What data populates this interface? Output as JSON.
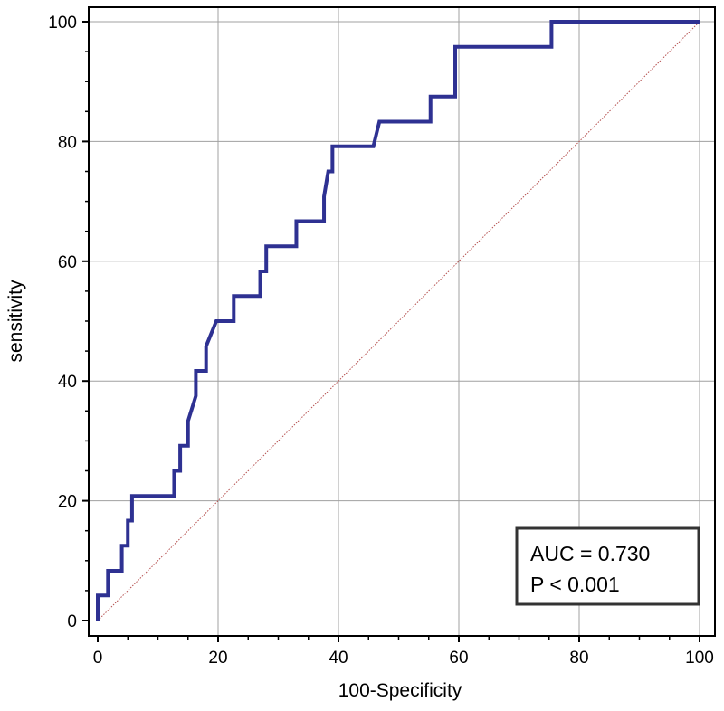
{
  "chart_data": {
    "type": "line",
    "title": "",
    "xlabel": "100-Specificity",
    "ylabel": "sensitivity",
    "xlim": [
      0,
      100
    ],
    "ylim": [
      0,
      100
    ],
    "xticks": [
      "0",
      "20",
      "40",
      "60",
      "80",
      "100"
    ],
    "yticks": [
      "0",
      "20",
      "40",
      "60",
      "80",
      "100"
    ],
    "grid": true,
    "colors": {
      "roc": "#2e3192",
      "reference": "#b5504f",
      "grid": "#a0a0a0"
    },
    "series": [
      {
        "values_x": [
          0,
          0,
          1.7,
          1.7,
          4,
          4,
          5,
          5,
          5.7,
          5.7,
          12.7,
          12.7,
          13.7,
          13.7,
          15,
          15,
          16.3,
          16.3,
          18,
          18,
          19.7,
          19.7,
          22.6,
          22.6,
          27,
          27,
          28,
          28,
          33,
          33,
          37.6,
          37.6,
          38.3,
          38.3,
          39,
          39,
          45.8,
          45.8,
          46.8,
          46.8,
          55.3,
          55.3,
          59.4,
          59.4,
          75.4,
          75.4,
          100
        ],
        "values_y": [
          0,
          4.2,
          4.2,
          8.3,
          8.3,
          12.5,
          12.5,
          16.7,
          16.7,
          20.8,
          20.8,
          25,
          25,
          29.2,
          29.2,
          33.3,
          37.5,
          41.7,
          41.7,
          45.8,
          50,
          50,
          50,
          54.2,
          54.2,
          58.3,
          58.3,
          62.5,
          62.5,
          66.7,
          66.7,
          70.8,
          75,
          75,
          75,
          79.2,
          79.2,
          79.2,
          83.3,
          83.3,
          83.3,
          87.5,
          87.5,
          95.8,
          95.8,
          100,
          100
        ]
      },
      {
        "values_x": [
          0,
          100
        ],
        "values_y": [
          0,
          100
        ]
      }
    ]
  },
  "annotation": {
    "auc": "AUC = 0.730",
    "p": "P < 0.001"
  }
}
